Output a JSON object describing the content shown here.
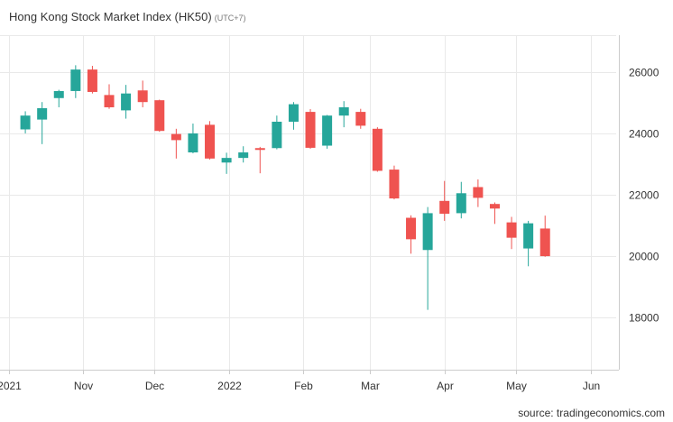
{
  "chart_data": {
    "type": "candlestick",
    "title": "Hong Kong Stock Market Index (HK50)",
    "timezone": "(UTC+7)",
    "source": "source: tradingeconomics.com",
    "ylim": [
      16300,
      27200
    ],
    "y_ticks": [
      18000,
      20000,
      22000,
      24000,
      26000
    ],
    "y_tick_labels": [
      "18000",
      "20000",
      "22000",
      "24000",
      "26000"
    ],
    "x_tick_labels": [
      "2021",
      "Nov",
      "Dec",
      "2022",
      "Feb",
      "Mar",
      "Apr",
      "May",
      "Jun"
    ],
    "grid": true,
    "colors": {
      "up": "#26a69a",
      "down": "#ef5350",
      "grid": "#e9e9e9",
      "axis": "#cccccc"
    },
    "series": [
      {
        "date": "2021-10-08",
        "open": 24130,
        "high": 24720,
        "low": 24000,
        "close": 24580
      },
      {
        "date": "2021-10-15",
        "open": 24450,
        "high": 25020,
        "low": 23650,
        "close": 24820
      },
      {
        "date": "2021-10-22",
        "open": 25150,
        "high": 25420,
        "low": 24850,
        "close": 25380
      },
      {
        "date": "2021-10-29",
        "open": 25380,
        "high": 26220,
        "low": 25150,
        "close": 26080
      },
      {
        "date": "2021-11-05",
        "open": 26080,
        "high": 26200,
        "low": 25300,
        "close": 25350
      },
      {
        "date": "2021-11-12",
        "open": 25250,
        "high": 25600,
        "low": 24800,
        "close": 24850
      },
      {
        "date": "2021-11-19",
        "open": 24750,
        "high": 25580,
        "low": 24480,
        "close": 25300
      },
      {
        "date": "2021-11-26",
        "open": 25400,
        "high": 25720,
        "low": 24850,
        "close": 25020
      },
      {
        "date": "2021-12-03",
        "open": 25080,
        "high": 25100,
        "low": 24050,
        "close": 24080
      },
      {
        "date": "2021-12-10",
        "open": 23980,
        "high": 24150,
        "low": 23180,
        "close": 23780
      },
      {
        "date": "2021-12-17",
        "open": 23380,
        "high": 24320,
        "low": 23350,
        "close": 24000
      },
      {
        "date": "2021-12-24",
        "open": 24280,
        "high": 24400,
        "low": 23150,
        "close": 23180
      },
      {
        "date": "2021-12-31",
        "open": 23050,
        "high": 23370,
        "low": 22680,
        "close": 23200
      },
      {
        "date": "2022-01-07",
        "open": 23200,
        "high": 23580,
        "low": 23050,
        "close": 23380
      },
      {
        "date": "2022-01-14",
        "open": 23520,
        "high": 23560,
        "low": 22700,
        "close": 23480
      },
      {
        "date": "2022-01-21",
        "open": 23520,
        "high": 24580,
        "low": 23480,
        "close": 24380
      },
      {
        "date": "2022-01-28",
        "open": 24380,
        "high": 25020,
        "low": 24120,
        "close": 24950
      },
      {
        "date": "2022-02-04",
        "open": 24700,
        "high": 24790,
        "low": 23500,
        "close": 23530
      },
      {
        "date": "2022-02-11",
        "open": 23600,
        "high": 24600,
        "low": 23500,
        "close": 24580
      },
      {
        "date": "2022-02-18",
        "open": 24580,
        "high": 25050,
        "low": 24200,
        "close": 24850
      },
      {
        "date": "2022-02-25",
        "open": 24700,
        "high": 24800,
        "low": 24150,
        "close": 24250
      },
      {
        "date": "2022-03-04",
        "open": 24150,
        "high": 24200,
        "low": 22750,
        "close": 22780
      },
      {
        "date": "2022-03-11",
        "open": 22820,
        "high": 22950,
        "low": 21850,
        "close": 21880
      },
      {
        "date": "2022-03-18",
        "open": 21250,
        "high": 21330,
        "low": 20080,
        "close": 20550
      },
      {
        "date": "2022-03-25",
        "open": 20200,
        "high": 21600,
        "low": 18250,
        "close": 21400
      },
      {
        "date": "2022-04-01",
        "open": 21800,
        "high": 22450,
        "low": 21150,
        "close": 21380
      },
      {
        "date": "2022-04-08",
        "open": 21400,
        "high": 22420,
        "low": 21230,
        "close": 22050
      },
      {
        "date": "2022-04-15",
        "open": 22250,
        "high": 22500,
        "low": 21600,
        "close": 21900
      },
      {
        "date": "2022-04-22",
        "open": 21700,
        "high": 21750,
        "low": 21050,
        "close": 21550
      },
      {
        "date": "2022-04-29",
        "open": 21100,
        "high": 21280,
        "low": 20230,
        "close": 20600
      },
      {
        "date": "2022-05-06",
        "open": 20250,
        "high": 21150,
        "low": 19670,
        "close": 21070
      },
      {
        "date": "2022-05-13",
        "open": 20900,
        "high": 21320,
        "low": 19980,
        "close": 20000
      }
    ]
  }
}
